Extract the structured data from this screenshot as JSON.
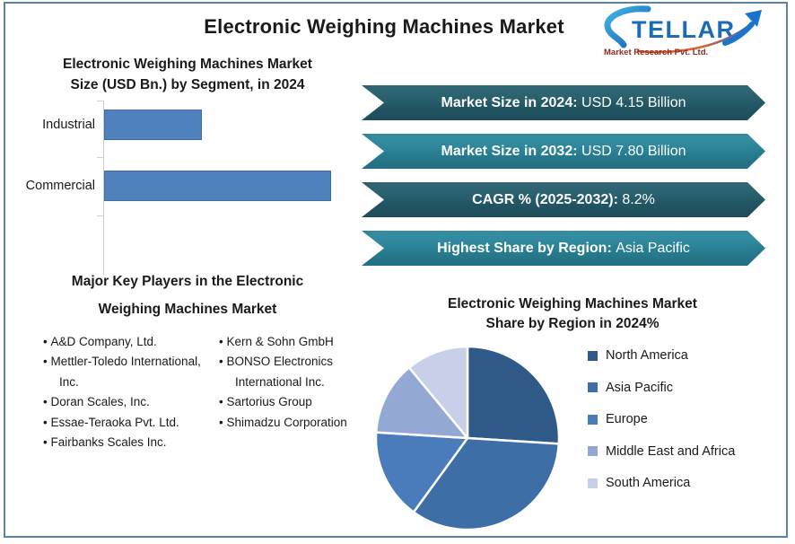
{
  "header": {
    "title": "Electronic Weighing Machines Market"
  },
  "logo": {
    "name": "STELLAR",
    "wordmark_rest": "TELLAR",
    "subtitle": "Market Research Pvt. Ltd.",
    "colors": {
      "blue": "#1b6cb5",
      "swoosh_light": "#45b3e6",
      "arrow_orange": "#e2622b",
      "subtitle_red": "#8c2a22"
    }
  },
  "colors": {
    "frame_border": "#5b82a0",
    "banner_dark": "#255e6d",
    "banner_light": "#2b879c",
    "banner_text": "#ffffff",
    "axis_gray": "#cfcfcf"
  },
  "banners": [
    {
      "label": "Market Size in 2024:",
      "value": "USD 4.15 Billion",
      "tone": "dark"
    },
    {
      "label": "Market Size in 2032:",
      "value": "USD 7.80 Billion",
      "tone": "light"
    },
    {
      "label": "CAGR % (2025-2032):",
      "value": "8.2%",
      "tone": "dark"
    },
    {
      "label": "Highest Share by Region:",
      "value": "Asia Pacific",
      "tone": "light"
    }
  ],
  "bar_section": {
    "title_line1": "Electronic Weighing Machines Market",
    "title_line2": "Size (USD Bn.) by Segment, in 2024"
  },
  "players": {
    "title_line1": "Major Key Players in the Electronic",
    "title_line2": "Weighing Machines Market",
    "column1": [
      "A&D Company, Ltd.",
      "Mettler-Toledo International, Inc.",
      "Doran Scales, Inc.",
      "Essae-Teraoka Pvt. Ltd.",
      "Fairbanks Scales Inc."
    ],
    "column2": [
      "Kern & Sohn GmbH",
      "BONSO Electronics International Inc.",
      "Sartorius Group",
      "Shimadzu Corporation"
    ]
  },
  "pie_section": {
    "title_line1": "Electronic Weighing Machines Market",
    "title_line2": "Share by Region in 2024%"
  },
  "chart_data": [
    {
      "type": "bar",
      "orientation": "horizontal",
      "title": "Electronic Weighing Machines Market Size (USD Bn.) by Segment, in 2024",
      "categories": [
        "Industrial",
        "Commercial"
      ],
      "values": [
        1.25,
        2.9
      ],
      "unit": "USD Bn.",
      "xlim": [
        0,
        3.25
      ],
      "bar_color": "#4f81bd",
      "bar_border_color": "#3f6da4",
      "grid": false,
      "value_labels_shown": false,
      "values_are_estimates": true
    },
    {
      "type": "pie",
      "title": "Electronic Weighing Machines Market Share by Region in 2024%",
      "labels": [
        "North America",
        "Asia Pacific",
        "Europe",
        "Middle East and Africa",
        "South America"
      ],
      "values_percent": [
        26,
        34,
        16,
        13,
        11
      ],
      "colors": [
        "#2f5a88",
        "#3d6ea6",
        "#4a7cbb",
        "#93a8d2",
        "#c7d0e8"
      ],
      "start_angle_deg": 0,
      "direction": "clockwise",
      "legend_position": "right",
      "values_are_estimates": true
    }
  ]
}
